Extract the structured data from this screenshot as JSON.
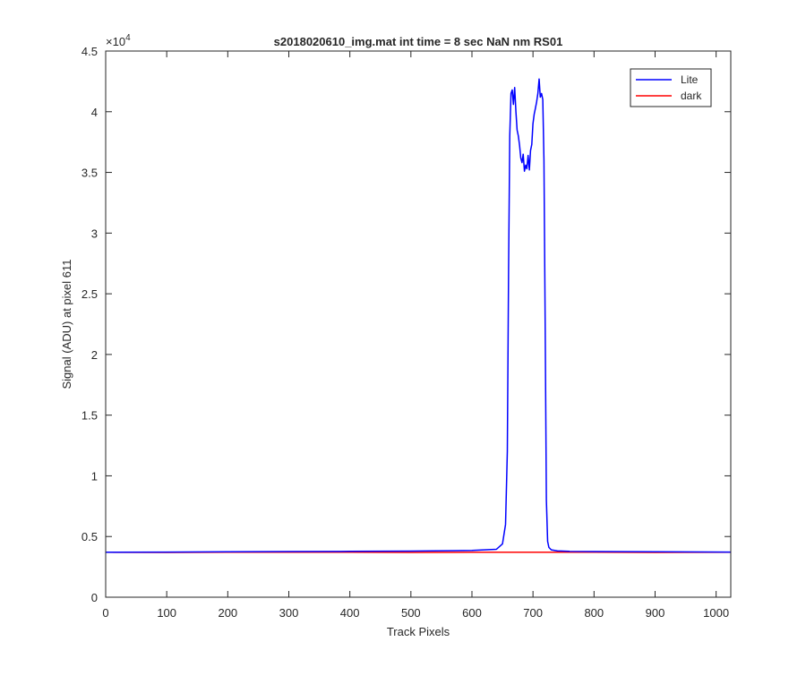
{
  "chart_data": {
    "type": "line",
    "title": "s2018020610_img.mat int time = 8 sec  NaN nm RS01",
    "xlabel": "Track Pixels",
    "ylabel": "Signal (ADU) at pixel 611",
    "xlim": [
      0,
      1024
    ],
    "ylim": [
      0,
      45000
    ],
    "y_exponent_label": "×10",
    "y_exponent_power": "4",
    "x_ticks": [
      0,
      100,
      200,
      300,
      400,
      500,
      600,
      700,
      800,
      900,
      1000
    ],
    "x_tick_labels": [
      "0",
      "100",
      "200",
      "300",
      "400",
      "500",
      "600",
      "700",
      "800",
      "900",
      "1000"
    ],
    "y_ticks": [
      0,
      5000,
      10000,
      15000,
      20000,
      25000,
      30000,
      35000,
      40000,
      45000
    ],
    "y_tick_labels": [
      "0",
      "0.5",
      "1",
      "1.5",
      "2",
      "2.5",
      "3",
      "3.5",
      "4",
      "4.5"
    ],
    "grid": false,
    "legend_position": "top-right",
    "series": [
      {
        "name": "Lite",
        "color": "#0000ff",
        "x": [
          0,
          100,
          200,
          300,
          400,
          500,
          600,
          640,
          650,
          655,
          658,
          660,
          662,
          664,
          666,
          668,
          670,
          672,
          674,
          676,
          678,
          680,
          682,
          684,
          686,
          688,
          690,
          692,
          694,
          696,
          698,
          700,
          702,
          704,
          706,
          708,
          710,
          712,
          714,
          716,
          718,
          720,
          722,
          724,
          726,
          730,
          740,
          760,
          800,
          900,
          1024
        ],
        "y": [
          3700,
          3720,
          3740,
          3760,
          3780,
          3800,
          3850,
          3950,
          4400,
          6000,
          12000,
          27000,
          38000,
          41500,
          41800,
          40600,
          42000,
          40000,
          38500,
          38000,
          37200,
          36200,
          35800,
          36500,
          35100,
          35600,
          35300,
          36400,
          35200,
          36800,
          37300,
          39000,
          39800,
          40300,
          40800,
          41500,
          42700,
          41200,
          41500,
          41000,
          36000,
          22000,
          8000,
          4600,
          4100,
          3900,
          3820,
          3780,
          3760,
          3740,
          3720
        ]
      },
      {
        "name": "dark",
        "color": "#ff0000",
        "x": [
          0,
          100,
          200,
          300,
          400,
          500,
          600,
          700,
          800,
          900,
          1024
        ],
        "y": [
          3700,
          3690,
          3700,
          3710,
          3700,
          3690,
          3700,
          3700,
          3700,
          3690,
          3700
        ]
      }
    ]
  }
}
